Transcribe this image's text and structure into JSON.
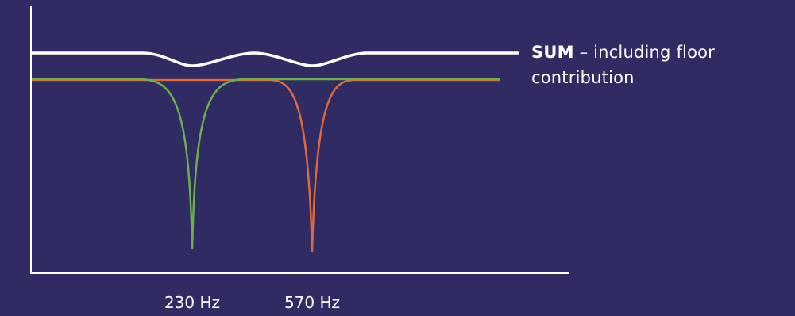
{
  "sum_label": {
    "bold": "SUM",
    "rest": " – including floor contribution"
  },
  "frequencies": {
    "first": "230 Hz",
    "second": "570 Hz"
  },
  "colors": {
    "background": "#302b63",
    "axis": "#ffffff",
    "sum_curve": "#ffffff",
    "first_notch": "#6ab04c",
    "second_notch": "#e0683a"
  }
}
